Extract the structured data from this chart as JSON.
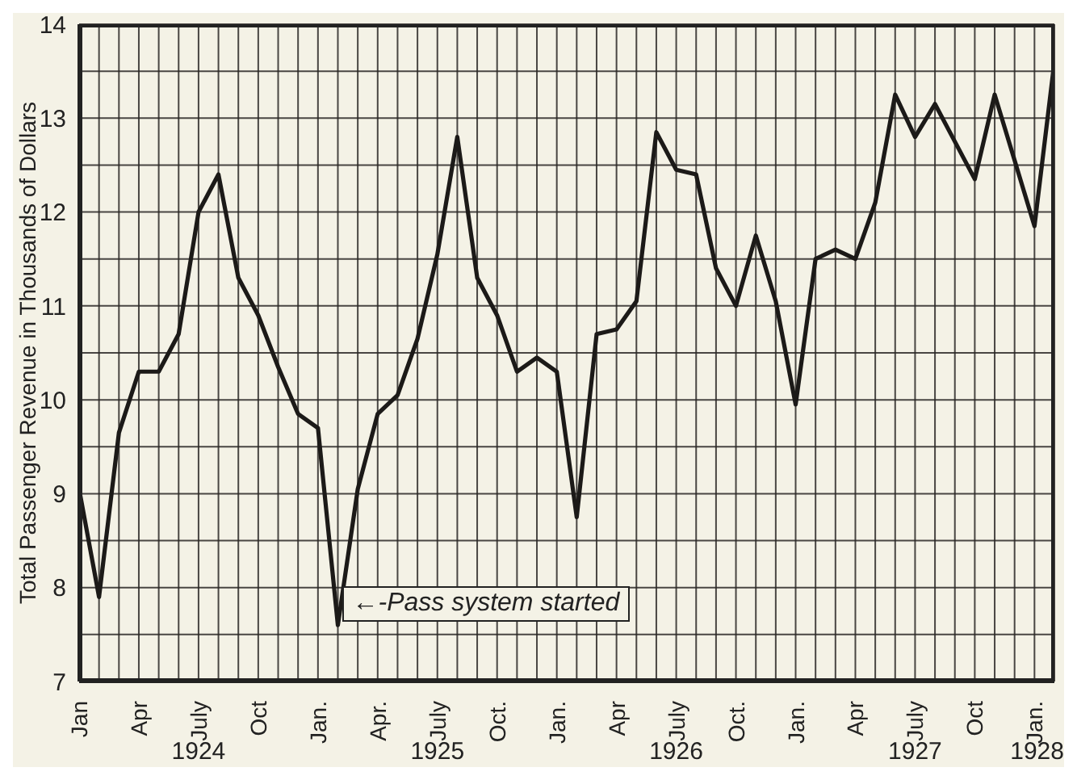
{
  "chart_data": {
    "type": "line",
    "ylabel": "Total Passenger Revenue in Thousands of Dollars",
    "categories": [
      "Jan",
      null,
      null,
      "Apr",
      null,
      null,
      "July",
      null,
      null,
      "Oct",
      null,
      null,
      "Jan.",
      null,
      null,
      "Apr.",
      null,
      null,
      "July",
      null,
      null,
      "Oct.",
      null,
      null,
      "Jan.",
      null,
      null,
      "Apr",
      null,
      null,
      "July",
      null,
      null,
      "Oct.",
      null,
      null,
      "Jan.",
      null,
      null,
      "Apr",
      null,
      null,
      "July",
      null,
      null,
      "Oct",
      null,
      null,
      "Jan.",
      null
    ],
    "series": [
      {
        "color": "#1c1a18",
        "values": [
          9.05,
          7.9,
          9.65,
          10.3,
          10.3,
          10.7,
          12.0,
          12.4,
          11.3,
          10.9,
          10.35,
          9.85,
          9.7,
          7.6,
          9.05,
          9.85,
          10.05,
          10.65,
          11.55,
          12.8,
          11.3,
          10.9,
          10.3,
          10.45,
          10.3,
          8.75,
          10.7,
          10.75,
          11.05,
          12.85,
          12.45,
          12.4,
          11.4,
          11.0,
          11.75,
          11.05,
          9.95,
          11.5,
          11.6,
          11.5,
          12.1,
          13.25,
          12.8,
          13.15,
          12.75,
          12.35,
          13.25,
          12.55,
          11.85,
          13.6
        ]
      }
    ],
    "ylim": [
      7,
      14
    ],
    "yticks": [
      7,
      {
        "value": 7.5,
        "label": null
      },
      8,
      {
        "value": 8.5,
        "label": null
      },
      9,
      {
        "value": 9.5,
        "label": null
      },
      10,
      {
        "value": 10.5,
        "label": null
      },
      11,
      {
        "value": 11.5,
        "label": null
      },
      12,
      {
        "value": 12.5,
        "label": null
      },
      13,
      {
        "value": 13.5,
        "label": null
      },
      14
    ],
    "grid": true,
    "marker": "none",
    "line_style": "solid",
    "legend": false,
    "annotations": [
      "←-Pass system started",
      "1924",
      "1925",
      "1926",
      "1927",
      "1928"
    ]
  }
}
